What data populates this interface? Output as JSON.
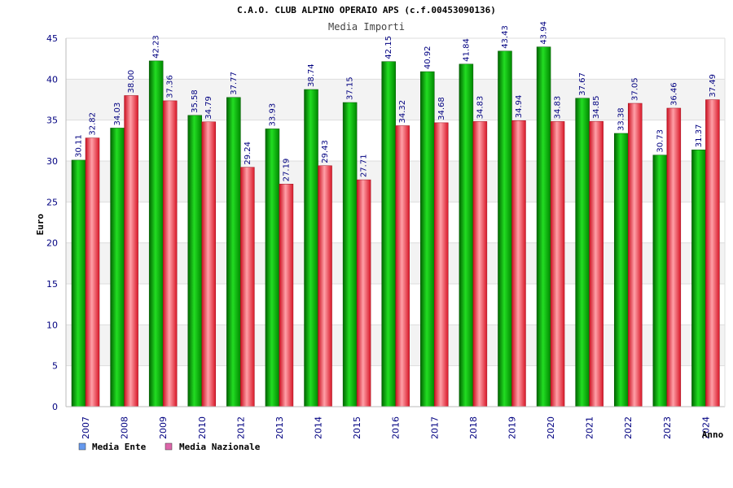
{
  "chart_data": {
    "type": "bar",
    "title": "C.A.O. CLUB ALPINO OPERAIO APS (c.f.00453090136)",
    "subtitle": "Media Importi",
    "xlabel": "Anno",
    "ylabel": "Euro",
    "ylim": [
      0,
      45
    ],
    "yticks": [
      0,
      5,
      10,
      15,
      20,
      25,
      30,
      35,
      40,
      45
    ],
    "categories": [
      "2007",
      "2008",
      "2009",
      "2010",
      "2012",
      "2013",
      "2014",
      "2015",
      "2016",
      "2017",
      "2018",
      "2019",
      "2020",
      "2021",
      "2022",
      "2023",
      "2024"
    ],
    "series": [
      {
        "name": "Media Ente",
        "color": "#00aa00",
        "legend_color": "#6699ee",
        "values": [
          30.11,
          34.03,
          42.23,
          35.58,
          37.77,
          33.93,
          38.74,
          37.15,
          42.15,
          40.92,
          41.84,
          43.43,
          43.94,
          37.67,
          33.38,
          30.73,
          31.37
        ],
        "labels": [
          "30.11",
          "34.03",
          "42.23",
          "35.58",
          "37.77",
          "33.93",
          "38.74",
          "37.15",
          "42.15",
          "40.92",
          "41.84",
          "43.43",
          "43.94",
          "37.67",
          "33.38",
          "30.73",
          "31.37"
        ]
      },
      {
        "name": "Media Nazionale",
        "color": "#e8303c",
        "legend_color": "#dd66aa",
        "values": [
          32.82,
          38.0,
          37.36,
          34.79,
          29.24,
          27.19,
          29.43,
          27.71,
          34.32,
          34.68,
          34.83,
          34.94,
          34.83,
          34.85,
          37.05,
          36.46,
          37.49
        ],
        "labels": [
          "32.82",
          "38.00",
          "37.36",
          "34.79",
          "29.24",
          "27.19",
          "29.43",
          "27.71",
          "34.32",
          "34.68",
          "34.83",
          "34.94",
          "34.83",
          "34.85",
          "37.05",
          "36.46",
          "37.49"
        ]
      }
    ],
    "grid": true,
    "legend_position": "bottom-left"
  }
}
